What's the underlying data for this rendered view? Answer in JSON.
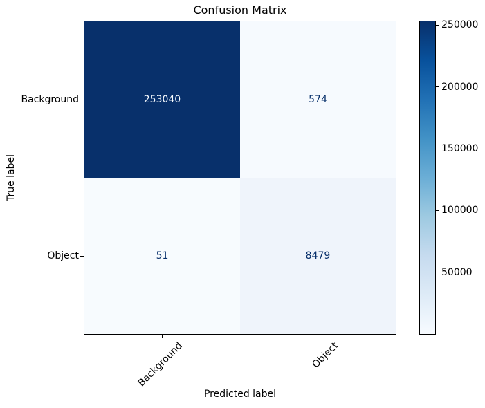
{
  "chart_data": {
    "type": "heatmap",
    "title": "Confusion Matrix",
    "xlabel": "Predicted label",
    "ylabel": "True label",
    "x_categories": [
      "Background",
      "Object"
    ],
    "y_categories": [
      "Background",
      "Object"
    ],
    "matrix": [
      [
        253040,
        574
      ],
      [
        51,
        8479
      ]
    ],
    "vmin": 51,
    "vmax": 253040,
    "grid": false,
    "colorbar": {
      "position": "right",
      "ticks": [
        50000,
        100000,
        150000,
        200000,
        250000
      ],
      "colormap": "Blues",
      "colormap_stops": [
        "#f7fbff",
        "#deebf7",
        "#c6dbef",
        "#9ecae1",
        "#6baed6",
        "#4292c6",
        "#2171b5",
        "#08519c",
        "#08306b"
      ]
    },
    "cell_bg_colors": [
      [
        "#08306b",
        "#f6fafe"
      ],
      [
        "#f7fbfe",
        "#eff4fb"
      ]
    ],
    "cell_text_colors": [
      [
        "#f7fbff",
        "#08306b"
      ],
      [
        "#08306b",
        "#08306b"
      ]
    ],
    "axis_color": "#000000",
    "background_color": "#ffffff"
  }
}
